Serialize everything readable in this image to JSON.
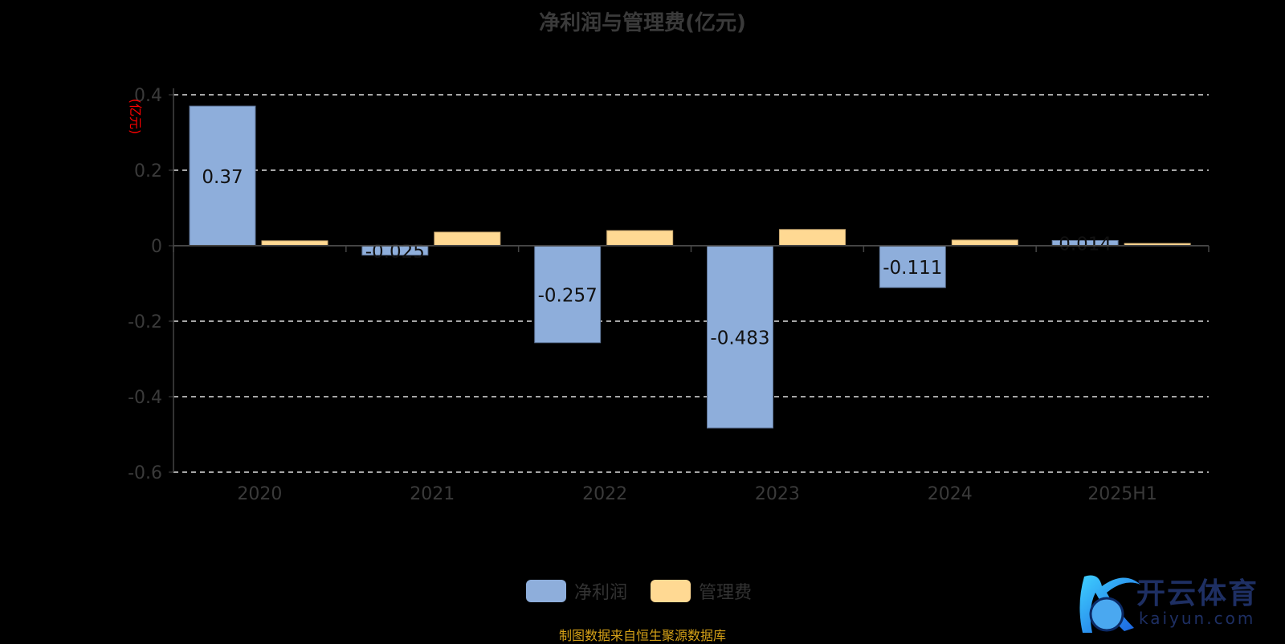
{
  "chart_data": {
    "type": "bar",
    "title": "净利润与管理费(亿元)",
    "ylabel": "(亿元)",
    "categories": [
      "2020",
      "2021",
      "2022",
      "2023",
      "2024",
      "2025H1"
    ],
    "series": [
      {
        "name": "净利润",
        "values": [
          0.37,
          -0.025,
          -0.257,
          -0.483,
          -0.111,
          0.014
        ],
        "color": "#8eaedb",
        "labels": [
          "0.37",
          "-0.025",
          "-0.257",
          "-0.483",
          "-0.111",
          "0.014"
        ]
      },
      {
        "name": "管理费",
        "values": [
          0.013,
          0.036,
          0.04,
          0.043,
          0.015,
          0.006
        ],
        "color": "#ffd993"
      }
    ],
    "ylim": [
      -0.6,
      0.4
    ],
    "yticks": [
      "0.4",
      "0.2",
      "0",
      "-0.2",
      "-0.4",
      "-0.6"
    ],
    "grid": true,
    "legend": "bottom-center"
  },
  "source": "制图数据来自恒生聚源数据库",
  "logo": {
    "name": "开云体育",
    "url": "kaiyun.com"
  }
}
